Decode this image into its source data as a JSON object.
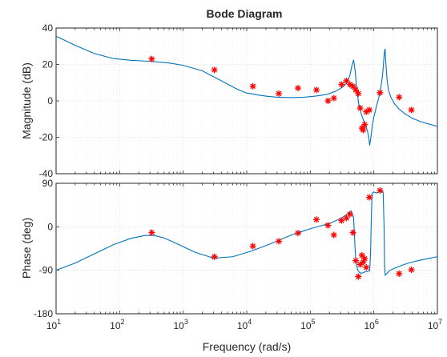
{
  "chart_data": {
    "type": "line",
    "title": "Bode Diagram",
    "xlabel": "Frequency  (rad/s)",
    "xscale": "log",
    "xlim": [
      10,
      10000000
    ],
    "x_tick_labels": [
      {
        "base": "10",
        "exp": "1"
      },
      {
        "base": "10",
        "exp": "2"
      },
      {
        "base": "10",
        "exp": "3"
      },
      {
        "base": "10",
        "exp": "4"
      },
      {
        "base": "10",
        "exp": "5"
      },
      {
        "base": "10",
        "exp": "6"
      },
      {
        "base": "10",
        "exp": "7"
      }
    ],
    "grid": true,
    "colors": {
      "model": "#0072bd",
      "measured": "#ff0000"
    },
    "panels": [
      {
        "name": "magnitude",
        "ylabel": "Magnitude (dB)",
        "ylim": [
          -40,
          40
        ],
        "y_ticks": [
          -40,
          -20,
          0,
          20,
          40
        ],
        "series": [
          {
            "style": "line",
            "x": [
              10,
              20,
              40,
              80,
              150,
              300,
              600,
              1000,
              2000,
              4000,
              7000,
              10000,
              15000,
              20000,
              30000,
              50000,
              80000,
              120000,
              180000,
              250000,
              320000,
              380000,
              420000,
              450000,
              480000,
              510000,
              540000,
              580000,
              620000,
              660000,
              700000,
              750000,
              800000,
              830000,
              860000,
              900000,
              950000,
              1000000,
              1100000,
              1200000,
              1300000,
              1380000,
              1430000,
              1470000,
              1500000,
              1550000,
              1620000,
              1700000,
              1850000,
              2100000,
              2500000,
              3000000,
              4000000,
              5500000,
              7000000,
              10000000
            ],
            "y": [
              35.5,
              30.5,
              26.0,
              23.2,
              22.3,
              21.7,
              20.8,
              19.5,
              16.5,
              11.0,
              6.5,
              4.3,
              3.2,
              2.6,
              2.0,
              1.8,
              2.0,
              2.6,
              3.5,
              5.2,
              7.5,
              10.0,
              14.0,
              19.0,
              22.5,
              16.0,
              6.0,
              -2.0,
              -6.0,
              -9.0,
              -11.5,
              -14.0,
              -17.0,
              -20.0,
              -24.5,
              -20.0,
              -13.0,
              -9.0,
              -3.0,
              2.0,
              8.0,
              15.0,
              22.0,
              27.0,
              28.5,
              20.0,
              11.0,
              6.0,
              2.0,
              -1.5,
              -4.5,
              -6.8,
              -9.5,
              -11.5,
              -12.5,
              -14.0
            ]
          },
          {
            "style": "markers",
            "x": [
              320,
              3100,
              12500,
              32000,
              64000,
              125000,
              190000,
              235000,
              310000,
              370000,
              420000,
              470000,
              520000,
              570000,
              610000,
              650000,
              680000,
              720000,
              760000,
              850000,
              1250000,
              2500000,
              3900000
            ],
            "y": [
              23,
              17,
              8,
              4,
              7,
              6,
              0,
              1.5,
              9,
              11,
              9,
              8,
              6,
              4,
              -4,
              -15,
              -16,
              -13,
              -6,
              -5,
              4.5,
              2,
              -5
            ]
          }
        ]
      },
      {
        "name": "phase",
        "ylabel": "Phase (deg)",
        "ylim": [
          -180,
          90
        ],
        "y_ticks": [
          -180,
          -90,
          0,
          90
        ],
        "series": [
          {
            "style": "line",
            "x": [
              10,
              20,
              40,
              80,
              150,
              250,
              350,
              500,
              800,
              1500,
              3000,
              6000,
              12000,
              25000,
              50000,
              100000,
              200000,
              300000,
              380000,
              440000,
              480000,
              500000,
              520000,
              540000,
              560000,
              600000,
              650000,
              700000,
              760000,
              820000,
              860000,
              890000,
              910000,
              930000,
              950000,
              1000000,
              1100000,
              1200000,
              1300000,
              1400000,
              1450000,
              1480000,
              1510000,
              1560000,
              1650000,
              1800000,
              2100000,
              2600000,
              3500000,
              5000000,
              7000000,
              10000000
            ],
            "y": [
              -90,
              -75,
              -56,
              -37,
              -24,
              -18,
              -18,
              -23,
              -35,
              -52,
              -65,
              -62,
              -50,
              -34,
              -17,
              -4,
              7,
              17,
              26,
              33,
              20,
              -30,
              -70,
              -82,
              -90,
              -95,
              -96,
              -94,
              -93,
              -92,
              -91,
              -50,
              10,
              55,
              70,
              72,
              70,
              72,
              75,
              72,
              0,
              -85,
              -100,
              -98,
              -95,
              -90,
              -86,
              -81,
              -75,
              -70,
              -66,
              -62
            ]
          },
          {
            "style": "markers",
            "x": [
              320,
              3100,
              12500,
              32000,
              64000,
              125000,
              190000,
              235000,
              310000,
              370000,
              420000,
              470000,
              520000,
              570000,
              610000,
              650000,
              680000,
              720000,
              760000,
              850000,
              1250000,
              2500000,
              3900000
            ],
            "y": [
              -12,
              -62,
              -40,
              -30,
              -13,
              15,
              3,
              -17,
              13,
              18,
              26,
              -12,
              -70,
              -103,
              -78,
              -59,
              -73,
              -66,
              -84,
              61,
              75,
              -97,
              -89
            ]
          }
        ]
      }
    ]
  }
}
